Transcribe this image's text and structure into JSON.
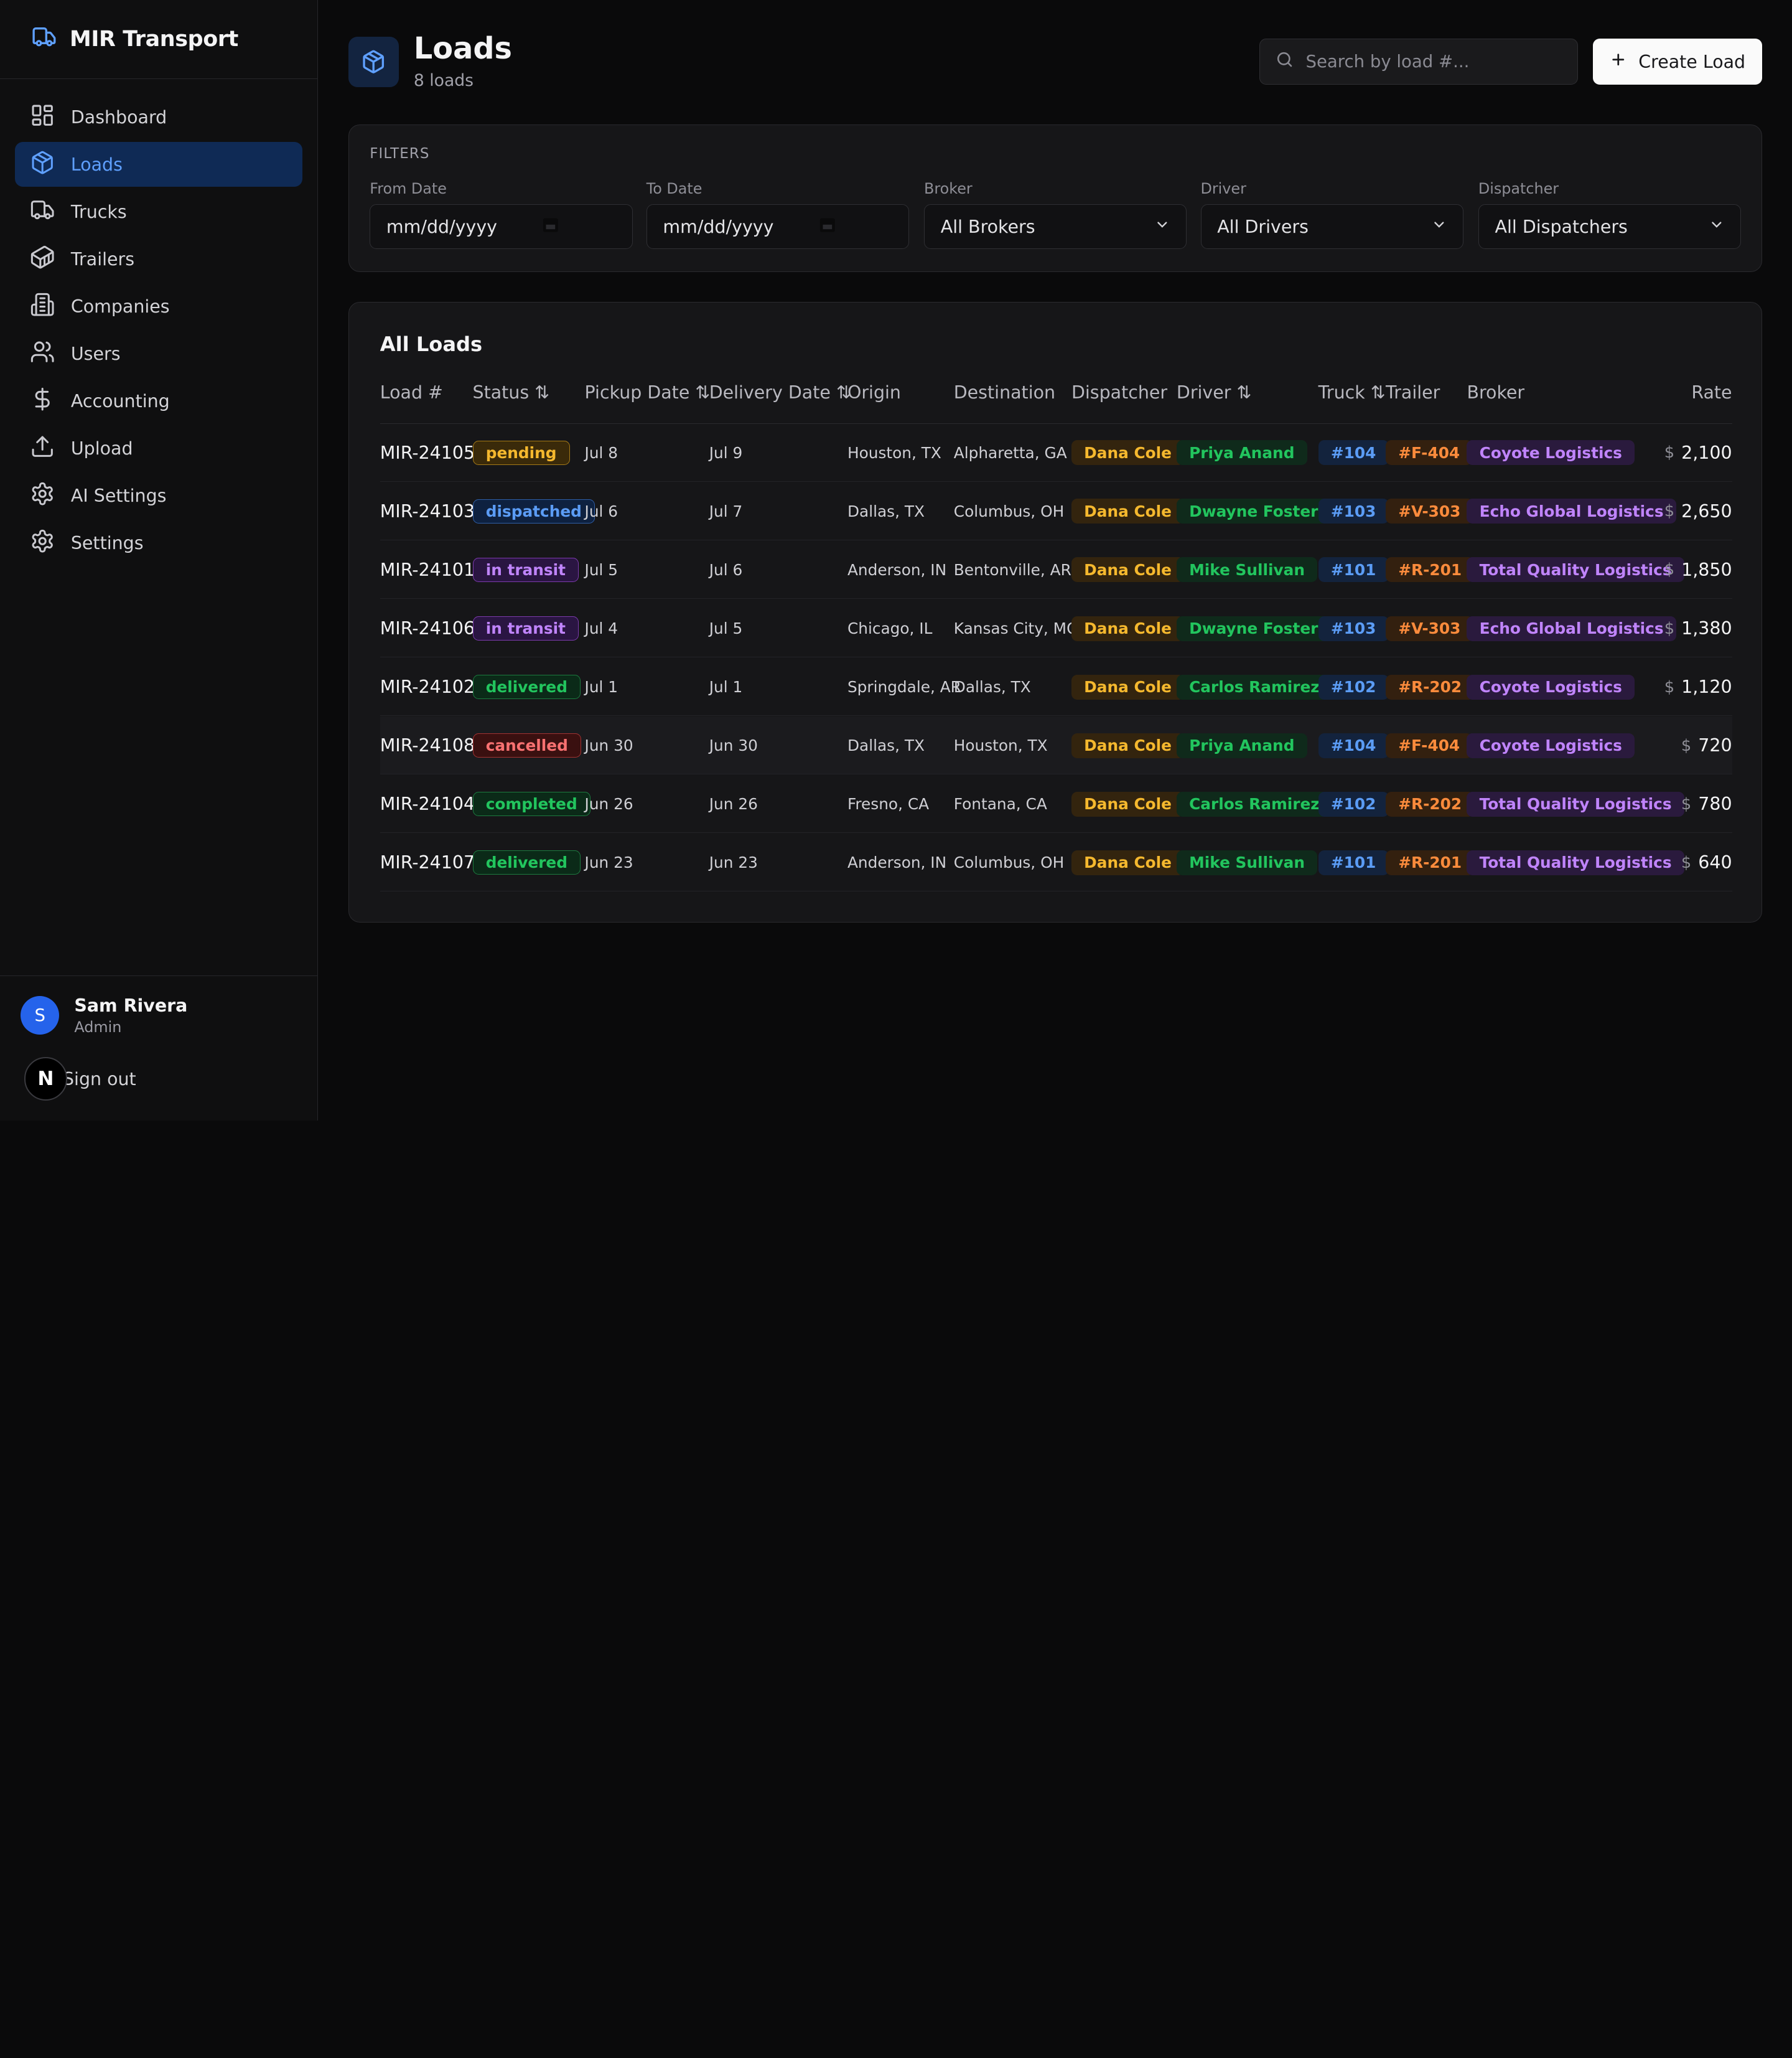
{
  "app": {
    "brand": "MIR Transport"
  },
  "sidebar": {
    "items": [
      {
        "label": "Dashboard",
        "icon": "dashboard-icon"
      },
      {
        "label": "Loads",
        "icon": "package-icon",
        "active": true
      },
      {
        "label": "Trucks",
        "icon": "truck-icon"
      },
      {
        "label": "Trailers",
        "icon": "container-icon"
      },
      {
        "label": "Companies",
        "icon": "building-icon"
      },
      {
        "label": "Users",
        "icon": "users-icon"
      },
      {
        "label": "Accounting",
        "icon": "dollar-icon"
      },
      {
        "label": "Upload",
        "icon": "upload-icon"
      },
      {
        "label": "AI Settings",
        "icon": "gear-icon"
      },
      {
        "label": "Settings",
        "icon": "gear-icon"
      }
    ],
    "user": {
      "initial": "S",
      "name": "Sam Rivera",
      "role": "Admin"
    },
    "signout": "Sign out",
    "next_badge": "N"
  },
  "header": {
    "title": "Loads",
    "subtitle": "8 loads",
    "search_placeholder": "Search by load #...",
    "create_label": "Create Load"
  },
  "filters": {
    "title": "FILTERS",
    "from_label": "From Date",
    "from_value": "mm/dd/yyyy",
    "to_label": "To Date",
    "to_value": "mm/dd/yyyy",
    "broker_label": "Broker",
    "broker_value": "All Brokers",
    "driver_label": "Driver",
    "driver_value": "All Drivers",
    "dispatcher_label": "Dispatcher",
    "dispatcher_value": "All Dispatchers"
  },
  "table": {
    "title": "All Loads",
    "columns": {
      "load": "Load #",
      "status": "Status",
      "pickup": "Pickup Date",
      "delivery": "Delivery Date",
      "origin": "Origin",
      "destination": "Destination",
      "dispatcher": "Dispatcher",
      "driver": "Driver",
      "truck": "Truck",
      "trailer": "Trailer",
      "broker": "Broker",
      "rate": "Rate"
    },
    "sort_glyph": "⇅",
    "currency": "$",
    "rows": [
      {
        "load": "MIR-24105",
        "status": "pending",
        "pickup": "Jul 8",
        "delivery": "Jul 9",
        "origin": "Houston, TX",
        "destination": "Alpharetta, GA",
        "dispatcher": "Dana Cole",
        "driver": "Priya Anand",
        "truck": "#104",
        "trailer": "#F-404",
        "broker": "Coyote Logistics",
        "rate": "2,100"
      },
      {
        "load": "MIR-24103",
        "status": "dispatched",
        "pickup": "Jul 6",
        "delivery": "Jul 7",
        "origin": "Dallas, TX",
        "destination": "Columbus, OH",
        "dispatcher": "Dana Cole",
        "driver": "Dwayne Foster",
        "truck": "#103",
        "trailer": "#V-303",
        "broker": "Echo Global Logistics",
        "rate": "2,650"
      },
      {
        "load": "MIR-24101",
        "status": "in transit",
        "pickup": "Jul 5",
        "delivery": "Jul 6",
        "origin": "Anderson, IN",
        "destination": "Bentonville, AR",
        "dispatcher": "Dana Cole",
        "driver": "Mike Sullivan",
        "truck": "#101",
        "trailer": "#R-201",
        "broker": "Total Quality Logistics",
        "rate": "1,850"
      },
      {
        "load": "MIR-24106",
        "status": "in transit",
        "pickup": "Jul 4",
        "delivery": "Jul 5",
        "origin": "Chicago, IL",
        "destination": "Kansas City, MO",
        "dispatcher": "Dana Cole",
        "driver": "Dwayne Foster",
        "truck": "#103",
        "trailer": "#V-303",
        "broker": "Echo Global Logistics",
        "rate": "1,380"
      },
      {
        "load": "MIR-24102",
        "status": "delivered",
        "pickup": "Jul 1",
        "delivery": "Jul 1",
        "origin": "Springdale, AR",
        "destination": "Dallas, TX",
        "dispatcher": "Dana Cole",
        "driver": "Carlos Ramirez",
        "truck": "#102",
        "trailer": "#R-202",
        "broker": "Coyote Logistics",
        "rate": "1,120"
      },
      {
        "load": "MIR-24108",
        "status": "cancelled",
        "pickup": "Jun 30",
        "delivery": "Jun 30",
        "origin": "Dallas, TX",
        "destination": "Houston, TX",
        "dispatcher": "Dana Cole",
        "driver": "Priya Anand",
        "truck": "#104",
        "trailer": "#F-404",
        "broker": "Coyote Logistics",
        "rate": "720"
      },
      {
        "load": "MIR-24104",
        "status": "completed",
        "pickup": "Jun 26",
        "delivery": "Jun 26",
        "origin": "Fresno, CA",
        "destination": "Fontana, CA",
        "dispatcher": "Dana Cole",
        "driver": "Carlos Ramirez",
        "truck": "#102",
        "trailer": "#R-202",
        "broker": "Total Quality Logistics",
        "rate": "780"
      },
      {
        "load": "MIR-24107",
        "status": "delivered",
        "pickup": "Jun 23",
        "delivery": "Jun 23",
        "origin": "Anderson, IN",
        "destination": "Columbus, OH",
        "dispatcher": "Dana Cole",
        "driver": "Mike Sullivan",
        "truck": "#101",
        "trailer": "#R-201",
        "broker": "Total Quality Logistics",
        "rate": "640"
      }
    ]
  },
  "colors": {
    "accent": "#5fa0ff",
    "status": {
      "pending": {
        "fg": "#f5b82e",
        "bg": "#3a2a0a",
        "border": "#a67a17"
      },
      "dispatched": {
        "fg": "#5b9cf5",
        "bg": "#0e2140",
        "border": "#2e5ea6"
      },
      "in transit": {
        "fg": "#c084fc",
        "bg": "#2a1542",
        "border": "#7c3aad"
      },
      "delivered": {
        "fg": "#22c55e",
        "bg": "#0b2a18",
        "border": "#1c7a3f"
      },
      "cancelled": {
        "fg": "#f87171",
        "bg": "#3a1010",
        "border": "#a33232"
      },
      "completed": {
        "fg": "#22c55e",
        "bg": "#0b2a18",
        "border": "#1c7a3f"
      }
    },
    "dispatcher": {
      "fg": "#f5b82e",
      "bg": "#33240e"
    },
    "driver": {
      "fg": "#22c55e",
      "bg": "#0f2a1b"
    },
    "truck": {
      "fg": "#5b9cf5",
      "bg": "#13233d"
    },
    "trailer": {
      "fg": "#fb8b3c",
      "bg": "#33200f"
    },
    "broker": {
      "fg": "#c084fc",
      "bg": "#2a1a3d"
    }
  }
}
